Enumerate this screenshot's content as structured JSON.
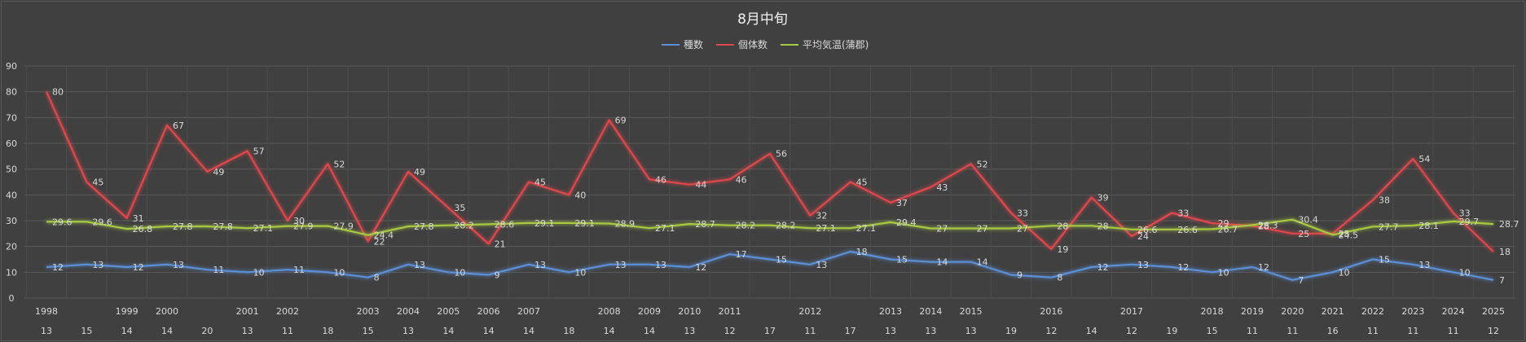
{
  "chart_data": {
    "type": "line",
    "title": "8月中旬",
    "legend_position": "top",
    "grid": true,
    "ylim": [
      0,
      90
    ],
    "yticks": [
      0,
      10,
      20,
      30,
      40,
      50,
      60,
      70,
      80,
      90
    ],
    "year_labels": [
      "1998",
      "",
      "1999",
      "2000",
      "",
      "2001",
      "2002",
      "",
      "2003",
      "2004",
      "2005",
      "2006",
      "2007",
      "",
      "2008",
      "2009",
      "2010",
      "2011",
      "",
      "2012",
      "",
      "2013",
      "2014",
      "2015",
      "",
      "2016",
      "",
      "2017",
      "",
      "2018",
      "2019",
      "2020",
      "2021",
      "2022",
      "2023",
      "2024",
      "2025"
    ],
    "day_labels": [
      "13",
      "15",
      "14",
      "14",
      "20",
      "13",
      "11",
      "18",
      "15",
      "13",
      "14",
      "14",
      "14",
      "18",
      "14",
      "14",
      "13",
      "12",
      "17",
      "11",
      "17",
      "13",
      "13",
      "13",
      "19",
      "12",
      "14",
      "12",
      "19",
      "15",
      "11",
      "11",
      "16",
      "11",
      "11",
      "11",
      "12"
    ],
    "series": [
      {
        "name": "種数",
        "color": "#5b8fd6",
        "values": [
          12,
          13,
          12,
          13,
          11,
          10,
          11,
          10,
          8,
          13,
          10,
          9,
          13,
          10,
          13,
          13,
          12,
          17,
          15,
          13,
          18,
          15,
          14,
          14,
          9,
          8,
          12,
          13,
          12,
          10,
          12,
          7,
          10,
          15,
          13,
          10,
          7
        ],
        "labels": [
          "12",
          "13",
          "12",
          "13",
          "11",
          "10",
          "11",
          "10",
          "8",
          "13",
          "10",
          "9",
          "13",
          "10",
          "13",
          "13",
          "12",
          "17",
          "15",
          "13",
          "18",
          "15",
          "14",
          "14",
          "9",
          "8",
          "12",
          "13",
          "12",
          "10",
          "12",
          "7",
          "10",
          "15",
          "13",
          "10",
          "7"
        ]
      },
      {
        "name": "個体数",
        "color": "#e0474c",
        "values": [
          80,
          45,
          31,
          67,
          49,
          57,
          30,
          52,
          22,
          49,
          35,
          21,
          45,
          40,
          69,
          46,
          44,
          46,
          56,
          32,
          45,
          37,
          43,
          52,
          33,
          19,
          39,
          24,
          33,
          29,
          28,
          25,
          25,
          38,
          54,
          33,
          18
        ],
        "labels": [
          "80",
          "45",
          "31",
          "67",
          "49",
          "57",
          "30",
          "52",
          "22",
          "49",
          "35",
          "21",
          "45",
          "40",
          "69",
          "46",
          "44",
          "46",
          "56",
          "32",
          "45",
          "37",
          "43",
          "52",
          "33",
          "19",
          "39",
          "24",
          "33",
          "29",
          "28",
          "25",
          "25",
          "38",
          "54",
          "33",
          "18"
        ]
      },
      {
        "name": "平均気温(蒲郡)",
        "color": "#a9c843",
        "values": [
          29.6,
          29.6,
          26.8,
          27.8,
          27.8,
          27.1,
          27.9,
          27.9,
          24.4,
          27.8,
          28.2,
          28.6,
          29.1,
          29.1,
          28.9,
          27.1,
          28.7,
          28.2,
          28.2,
          27.1,
          27.1,
          29.4,
          27,
          27,
          27,
          28,
          28,
          26.6,
          26.6,
          26.7,
          28.3,
          30.4,
          24.5,
          27.7,
          28.1,
          29.7,
          28.7
        ],
        "labels": [
          "29.6",
          "29.6",
          "26.8",
          "27.8",
          "27.8",
          "27.1",
          "27.9",
          "27.9",
          "24.4",
          "27.8",
          "28.2",
          "28.6",
          "29.1",
          "29.1",
          "28.9",
          "27.1",
          "28.7",
          "28.2",
          "28.2",
          "27.1",
          "27.1",
          "29.4",
          "27",
          "27",
          "27",
          "28",
          "28",
          "26.6",
          "26.6",
          "26.7",
          "28.3",
          "30.4",
          "24.5",
          "27.7",
          "28.1",
          "29.7",
          "28.7"
        ]
      }
    ]
  }
}
